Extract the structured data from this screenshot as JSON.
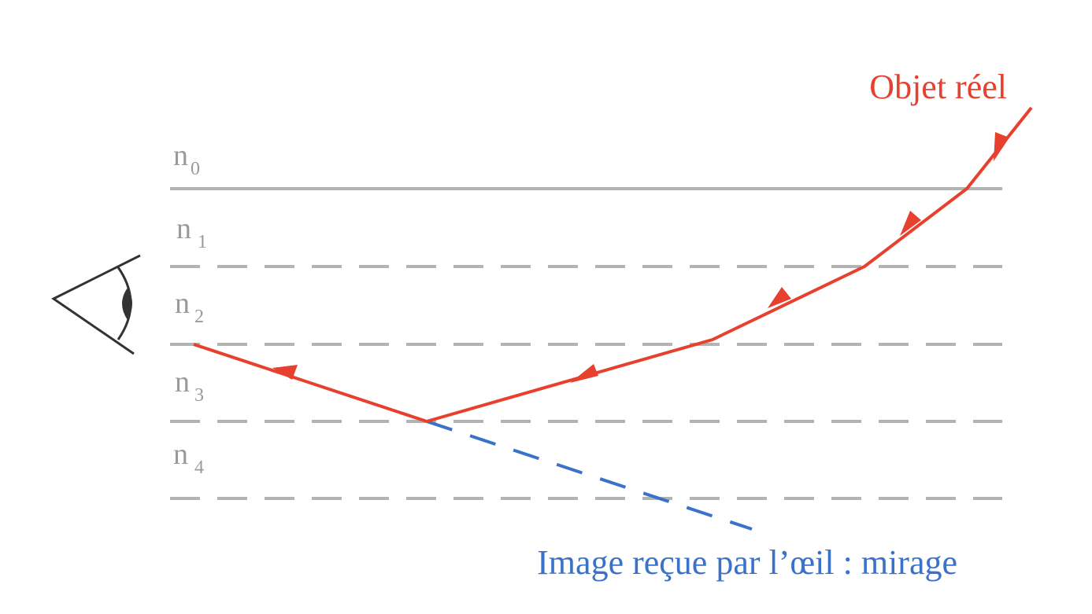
{
  "labels": {
    "object": "Objet réel",
    "image": "Image reçue par l’œil : mirage"
  },
  "layers": [
    {
      "symbol": "n",
      "index": "0"
    },
    {
      "symbol": "n",
      "index": "1"
    },
    {
      "symbol": "n",
      "index": "2"
    },
    {
      "symbol": "n",
      "index": "3"
    },
    {
      "symbol": "n",
      "index": "4"
    }
  ],
  "colors": {
    "ray": "#e8402e",
    "virtual_ray": "#3a72c9",
    "interface": "#b3b3b3",
    "layer_label": "#9a9a9a",
    "eye": "#333333"
  },
  "icons": {
    "observer": "eye-icon"
  }
}
